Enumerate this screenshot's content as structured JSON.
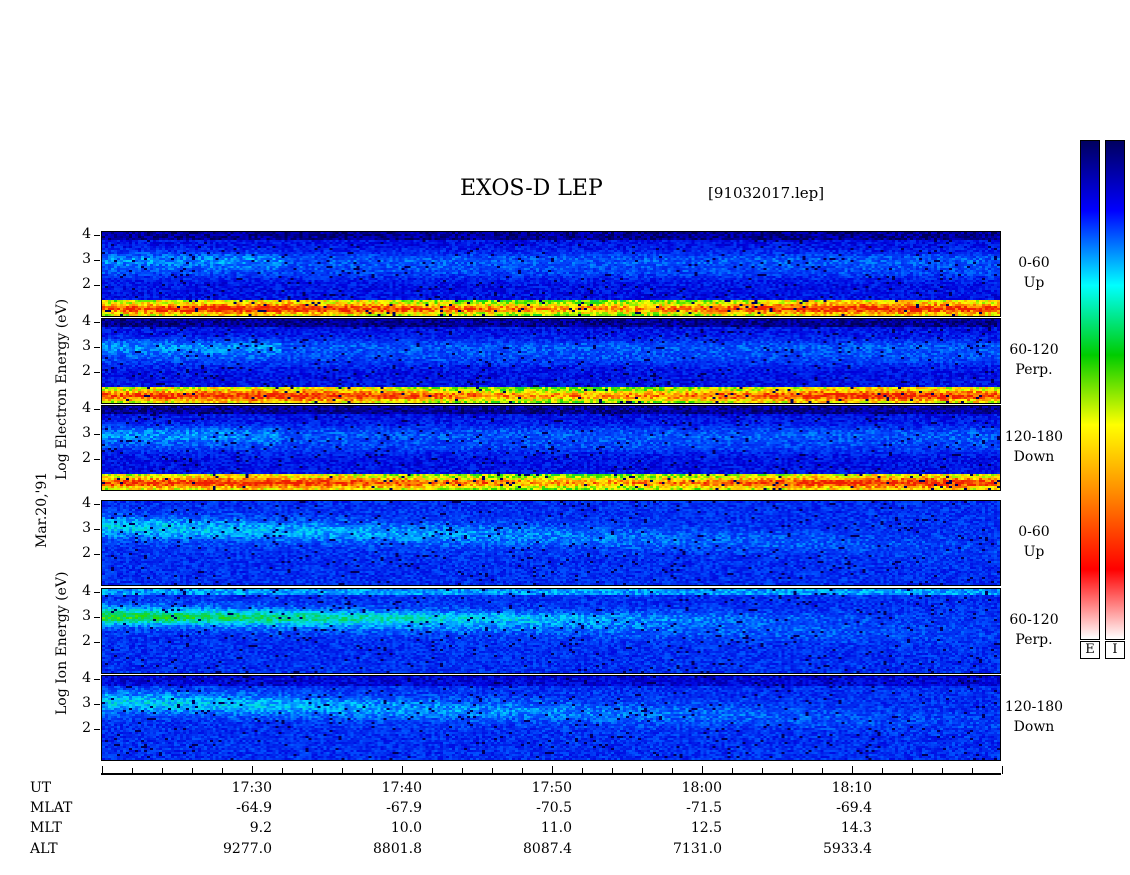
{
  "chart_data": {
    "type": "heatmap",
    "title": "EXOS-D LEP",
    "file_label": "[91032017.lep]",
    "date_label": "Mar.20,'91",
    "y_tick_labels": [
      "4",
      "3",
      "2"
    ],
    "ylim": [
      1,
      4
    ],
    "species": [
      {
        "name": "Electron",
        "ylabel_words": [
          "Log",
          "Electron",
          "Energy",
          "(eV)"
        ],
        "panels": [
          {
            "pitch": "0-60",
            "dir": "Up"
          },
          {
            "pitch": "60-120",
            "dir": "Perp."
          },
          {
            "pitch": "120-180",
            "dir": "Down"
          }
        ]
      },
      {
        "name": "Ion",
        "ylabel_words": [
          "Log",
          "Ion",
          "Energy",
          "(eV)"
        ],
        "panels": [
          {
            "pitch": "0-60",
            "dir": "Up"
          },
          {
            "pitch": "60-120",
            "dir": "Perp."
          },
          {
            "pitch": "120-180",
            "dir": "Down"
          }
        ]
      }
    ],
    "colorbars": [
      "E",
      "I"
    ],
    "x_row_labels": [
      "UT",
      "MLAT",
      "MLT",
      "ALT"
    ],
    "x_ticks": [
      {
        "ut": "17:30",
        "mlat": "-64.9",
        "mlt": "9.2",
        "alt": "9277.0"
      },
      {
        "ut": "17:40",
        "mlat": "-67.9",
        "mlt": "10.0",
        "alt": "8801.8"
      },
      {
        "ut": "17:50",
        "mlat": "-70.5",
        "mlt": "11.0",
        "alt": "8087.4"
      },
      {
        "ut": "18:00",
        "mlat": "-71.5",
        "mlt": "12.5",
        "alt": "7131.0"
      },
      {
        "ut": "18:10",
        "mlat": "-69.4",
        "mlt": "14.3",
        "alt": "5933.4"
      }
    ],
    "colors": {
      "scale": [
        "#ffffff",
        "#ff0000",
        "#ff8800",
        "#ffff00",
        "#00cc00",
        "#00ffff",
        "#0000ff",
        "#000060"
      ]
    }
  }
}
